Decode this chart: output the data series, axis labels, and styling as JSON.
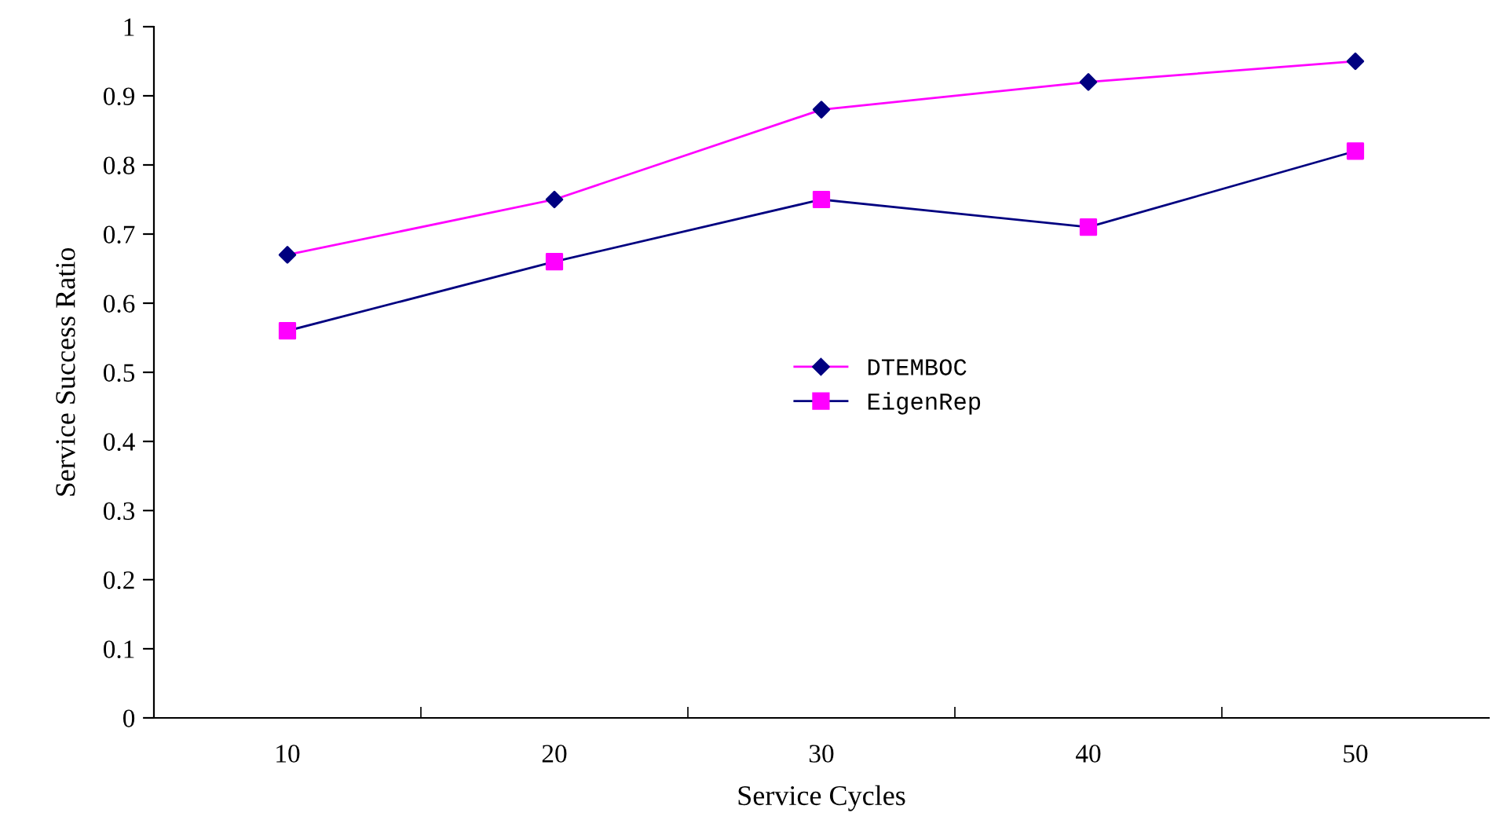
{
  "chart_data": {
    "type": "line",
    "xlabel": "Service Cycles",
    "ylabel": "Service Success Ratio",
    "categories": [
      "10",
      "20",
      "30",
      "40",
      "50"
    ],
    "series": [
      {
        "name": "DTEMBOC",
        "color": "#ff00ff",
        "colors": [
          "#000080",
          "#000080",
          "#000080",
          "#000080",
          "#000080"
        ],
        "marker": "diamond",
        "values": [
          0.67,
          0.75,
          0.88,
          0.92,
          0.95
        ]
      },
      {
        "name": "EigenRep",
        "color": "#000080",
        "colors": [
          "#ff00ff",
          "#ff00ff",
          "#ff00ff",
          "#ff00ff",
          "#ff00ff"
        ],
        "marker": "square",
        "values": [
          0.56,
          0.66,
          0.75,
          0.71,
          0.82
        ]
      }
    ],
    "ylim": [
      0,
      1
    ],
    "yticks": [
      0,
      0.1,
      0.2,
      0.3,
      0.4,
      0.5,
      0.6,
      0.7,
      0.8,
      0.9,
      1
    ],
    "grid": false,
    "legend": "center",
    "line_style": "solid"
  }
}
